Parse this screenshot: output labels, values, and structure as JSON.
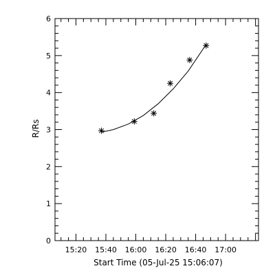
{
  "chart_data": {
    "type": "scatter",
    "xlabel": "Start Time (05-Jul-25 15:06:07)",
    "ylabel": "R/Rs",
    "x_ticks": [
      "15:20",
      "15:40",
      "16:00",
      "16:20",
      "16:40",
      "17:00"
    ],
    "x_tick_values": [
      "15:20",
      "15:40",
      "16:00",
      "16:20",
      "16:40",
      "17:00"
    ],
    "xlim": [
      "15:06",
      "17:22"
    ],
    "y_ticks": [
      0,
      1,
      2,
      3,
      4,
      5,
      6
    ],
    "ylim": [
      0,
      6
    ],
    "grid": false,
    "legend": "none",
    "series": [
      {
        "marker": "asterisk",
        "x": [
          "15:37",
          "15:59",
          "16:12",
          "16:23",
          "16:36",
          "16:47"
        ],
        "y": [
          2.97,
          3.22,
          3.44,
          4.25,
          4.88,
          5.27
        ]
      }
    ],
    "fit_curve": {
      "style": "line",
      "x": [
        "15:37",
        "15:45",
        "15:55",
        "16:05",
        "16:15",
        "16:25",
        "16:35",
        "16:47"
      ],
      "y": [
        2.93,
        3.0,
        3.15,
        3.38,
        3.7,
        4.1,
        4.58,
        5.3
      ]
    }
  }
}
